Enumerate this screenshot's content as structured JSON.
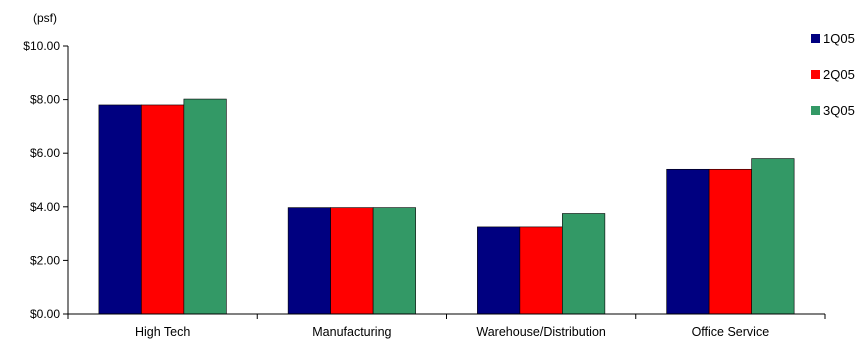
{
  "chart_data": {
    "type": "bar",
    "unit_label": "(psf)",
    "categories": [
      "High Tech",
      "Manufacturing",
      "Warehouse/Distribution",
      "Office Service"
    ],
    "series": [
      {
        "name": "1Q05",
        "values": [
          7.8,
          3.97,
          3.25,
          5.4
        ],
        "color": "#000080"
      },
      {
        "name": "2Q05",
        "values": [
          7.8,
          3.97,
          3.25,
          5.4
        ],
        "color": "#ff0000"
      },
      {
        "name": "3Q05",
        "values": [
          8.02,
          3.97,
          3.75,
          5.8
        ],
        "color": "#339966"
      }
    ],
    "ylim": [
      0,
      10
    ],
    "yticks": [
      "$0.00",
      "$2.00",
      "$4.00",
      "$6.00",
      "$8.00",
      "$10.00"
    ],
    "ytick_values": [
      0,
      2,
      4,
      6,
      8,
      10
    ],
    "grid": false,
    "legend": "top-right"
  }
}
